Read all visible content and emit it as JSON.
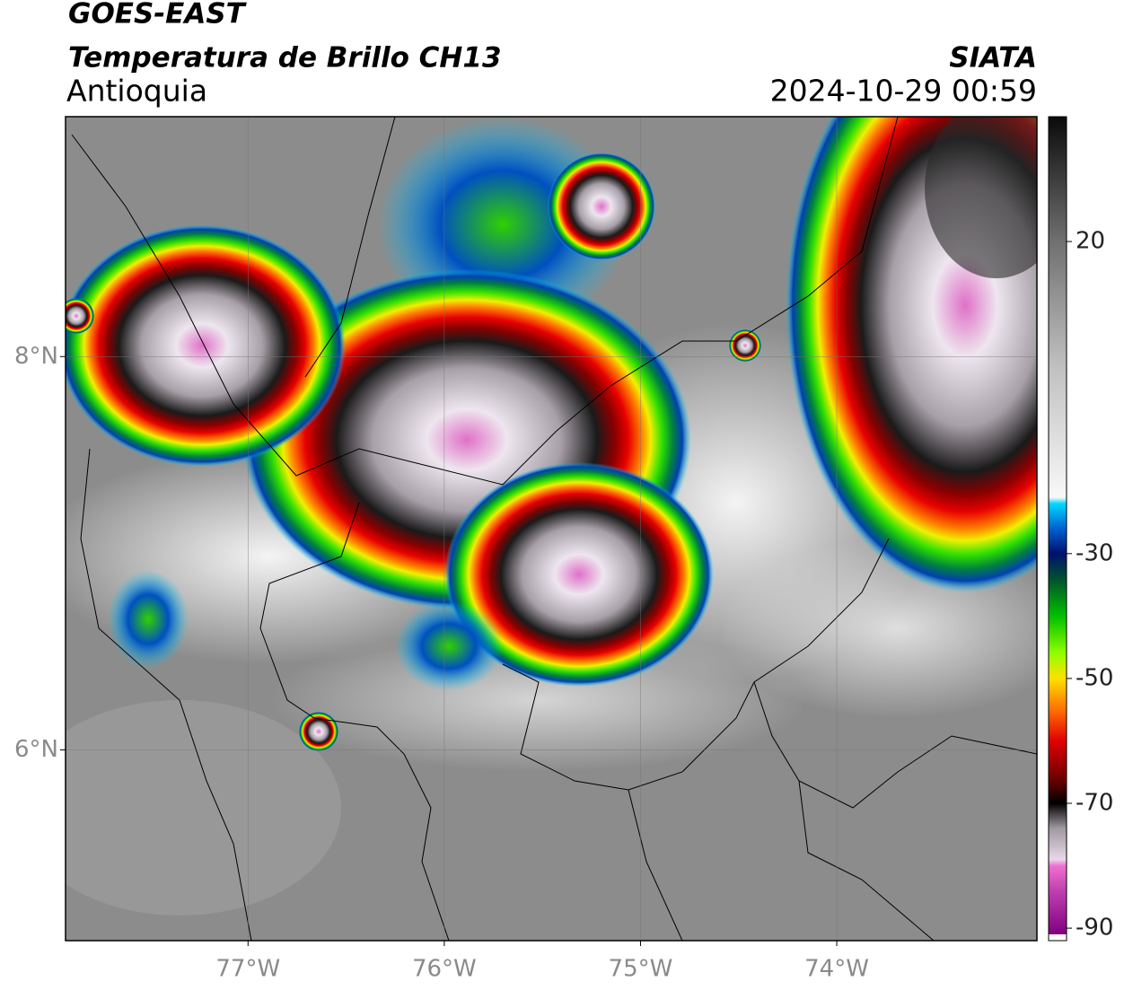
{
  "header": {
    "title": "GOES-EAST",
    "subtitle": "Temperatura de Brillo CH13",
    "region": "Antioquia",
    "source": "SIATA",
    "datetime": "2024-10-29 00:59"
  },
  "map": {
    "xlim": [
      -77.93,
      -72.98
    ],
    "ylim": [
      5.03,
      9.22
    ],
    "xticks": [
      {
        "value": -77,
        "label": "77°W"
      },
      {
        "value": -76,
        "label": "76°W"
      },
      {
        "value": -75,
        "label": "75°W"
      },
      {
        "value": -74,
        "label": "74°W"
      }
    ],
    "yticks": [
      {
        "value": 8,
        "label": "8°N"
      },
      {
        "value": 6,
        "label": "6°N"
      }
    ],
    "grid": true
  },
  "colorbar": {
    "lim": [
      -92,
      40
    ],
    "ticks": [
      20,
      -30,
      -50,
      -70,
      -90
    ]
  }
}
